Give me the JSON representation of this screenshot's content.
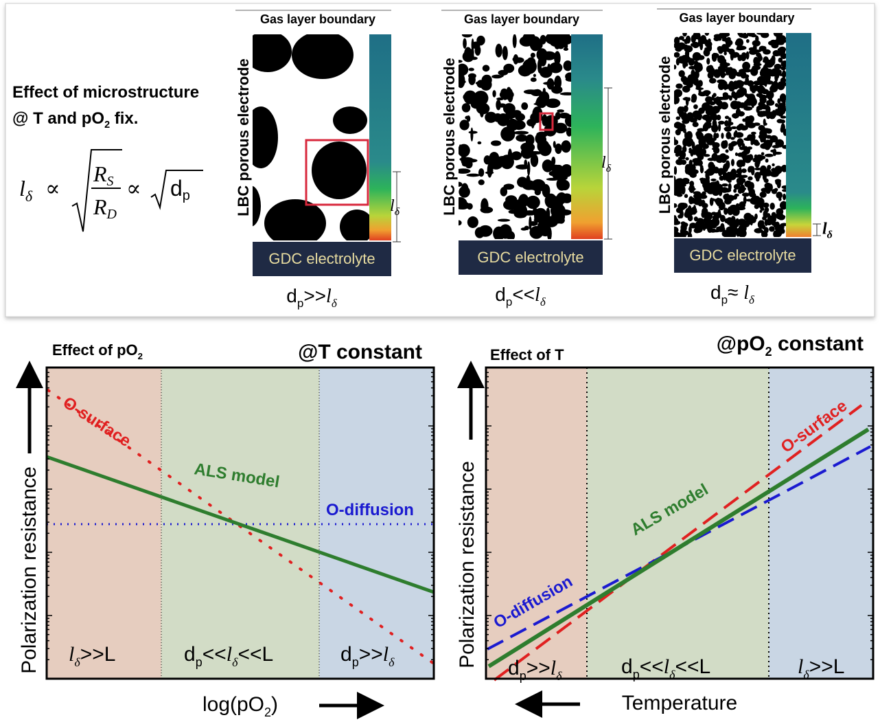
{
  "top": {
    "heading": {
      "line1": "Effect of microstructure",
      "line2": "@ T and pO",
      "line2_sub": "2",
      "line2_end": " fix."
    },
    "equation": {
      "l": "l",
      "l_sub": "δ",
      "prop": "∝",
      "rs": "R",
      "rs_sub": "S",
      "rd": "R",
      "rd_sub": "D",
      "prop2": "∝",
      "dp": "d",
      "dp_sub": "p"
    },
    "panels": [
      {
        "top": "Gas layer boundary",
        "side": "LBC porous electrode",
        "bottom": "GDC electrolyte",
        "length": "l",
        "length_sub": "δ",
        "caption": {
          "d": "d",
          "sub": "p",
          "rel": ">>",
          "l": "l",
          "lsub": "δ"
        }
      },
      {
        "top": "Gas layer boundary",
        "side": "LBC porous electrode",
        "bottom": "GDC electrolyte",
        "length": "l",
        "length_sub": "δ",
        "caption": {
          "d": "d",
          "sub": "p",
          "rel": "<<",
          "l": "l",
          "lsub": "δ"
        }
      },
      {
        "top": "Gas layer boundary",
        "side": "LBC porous electrode",
        "bottom": "GDC electrolyte",
        "length": "l",
        "length_sub": "δ",
        "caption": {
          "d": "d",
          "sub": "p",
          "rel": "≈ ",
          "l": "l",
          "lsub": "δ"
        }
      }
    ]
  },
  "left_plot": {
    "title": "Effect of pO",
    "title_sub": "2",
    "condition": "@T constant",
    "ylabel": "Polarization resistance",
    "xlabel": "log(pO",
    "xlabel_sub": "2",
    "xlabel_end": ")",
    "curves": [
      "O-surface",
      "ALS model",
      "O-diffusion"
    ],
    "regions": [
      {
        "l": "l",
        "l_sub": "δ",
        "rest": ">>L"
      },
      {
        "d": "d",
        "d_sub": "p",
        "mid": "<<",
        "l": "l",
        "l_sub": "δ",
        "rest": "<<L"
      },
      {
        "d": "d",
        "d_sub": "p",
        "mid": ">>",
        "l": "l",
        "l_sub": "δ"
      }
    ]
  },
  "right_plot": {
    "title": "Effect of T",
    "condition": "@pO",
    "condition_sub": "2",
    "condition_end": " constant",
    "ylabel": "Polarization resistance",
    "xlabel": "Temperature",
    "curves": [
      "O-surface",
      "ALS model",
      "O-diffusion"
    ],
    "regions": [
      {
        "d": "d",
        "d_sub": "p",
        "mid": ">>",
        "l": "l",
        "l_sub": "δ"
      },
      {
        "d": "d",
        "d_sub": "p",
        "mid": "<<",
        "l": "l",
        "l_sub": "δ",
        "rest": "<<L"
      },
      {
        "l": "l",
        "l_sub": "δ",
        "rest": ">>L"
      }
    ]
  }
}
